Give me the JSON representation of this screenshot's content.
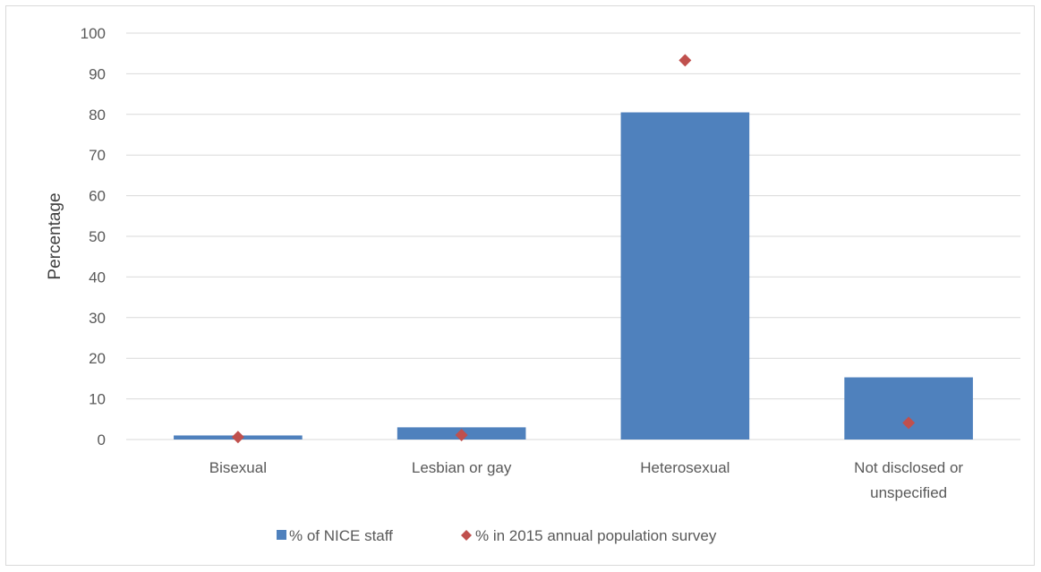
{
  "chart_data": {
    "type": "bar",
    "title": "",
    "xlabel": "",
    "ylabel": "Percentage",
    "ylim": [
      0,
      100
    ],
    "yticks": [
      0,
      10,
      20,
      30,
      40,
      50,
      60,
      70,
      80,
      90,
      100
    ],
    "grid": true,
    "legend_position": "bottom",
    "categories": [
      [
        "Bisexual"
      ],
      [
        "Lesbian or gay"
      ],
      [
        "Heterosexual"
      ],
      [
        "Not disclosed or",
        "unspecified"
      ]
    ],
    "series": [
      {
        "name": "% of NICE staff",
        "type": "bar",
        "color": "#4f81bd",
        "values": [
          1,
          3,
          80.5,
          15.3
        ]
      },
      {
        "name": "% in 2015 annual population survey",
        "type": "scatter",
        "marker": "diamond",
        "color": "#c0504d",
        "values": [
          0.6,
          1.1,
          93.3,
          4.1
        ]
      }
    ]
  }
}
